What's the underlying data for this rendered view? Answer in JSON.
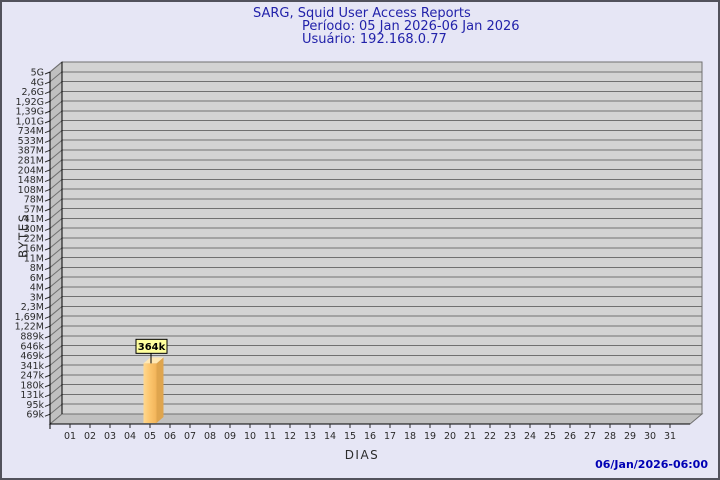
{
  "chart_data": {
    "type": "bar",
    "style": "3d-bar",
    "title": "SARG, Squid User Access Reports",
    "subtitle_period": "Período: 05 Jan 2026-06 Jan 2026",
    "subtitle_user": "Usuário: 192.168.0.77",
    "xlabel": "DIAS",
    "ylabel": "BYTES",
    "footer_timestamp": "06/Jan/2026-06:00",
    "grid": "horizontal",
    "legend_position": "none",
    "y_scale": "logarithmic-ladder",
    "y_tick_labels": [
      "5G",
      "4G",
      "2,6G",
      "1,92G",
      "1,39G",
      "1,01G",
      "734M",
      "533M",
      "387M",
      "281M",
      "204M",
      "148M",
      "108M",
      "78M",
      "57M",
      "41M",
      "30M",
      "22M",
      "16M",
      "11M",
      "8M",
      "6M",
      "4M",
      "3M",
      "2,3M",
      "1,69M",
      "1,22M",
      "889k",
      "646k",
      "469k",
      "341k",
      "247k",
      "180k",
      "131k",
      "95k",
      "69k"
    ],
    "categories": [
      "01",
      "02",
      "03",
      "04",
      "05",
      "06",
      "07",
      "08",
      "09",
      "10",
      "11",
      "12",
      "13",
      "14",
      "15",
      "16",
      "17",
      "18",
      "19",
      "20",
      "21",
      "22",
      "23",
      "24",
      "25",
      "26",
      "27",
      "28",
      "29",
      "30",
      "31"
    ],
    "bars": [
      {
        "day": "05",
        "label": "364k",
        "value_bytes": 364000
      }
    ],
    "colors": {
      "background": "#e6e6f5",
      "frame_border": "#52525c",
      "plot_wall": "#d3d3d3",
      "plot_side": "#c0c0c0",
      "gridline": "#707070",
      "axis": "#000000",
      "tick_text": "#2b2b2b",
      "title_text": "#2222aa",
      "timestamp_text": "#0000b4",
      "bar_front": "#fcc770",
      "bar_front_light": "#ffd88f",
      "bar_front_dark": "#f2b45a",
      "bar_side": "#dfa54e",
      "bar_top": "#ffe8b4",
      "annotation_bg": "#ffff9e",
      "annotation_border": "#000000",
      "annotation_text": "#000000"
    }
  }
}
